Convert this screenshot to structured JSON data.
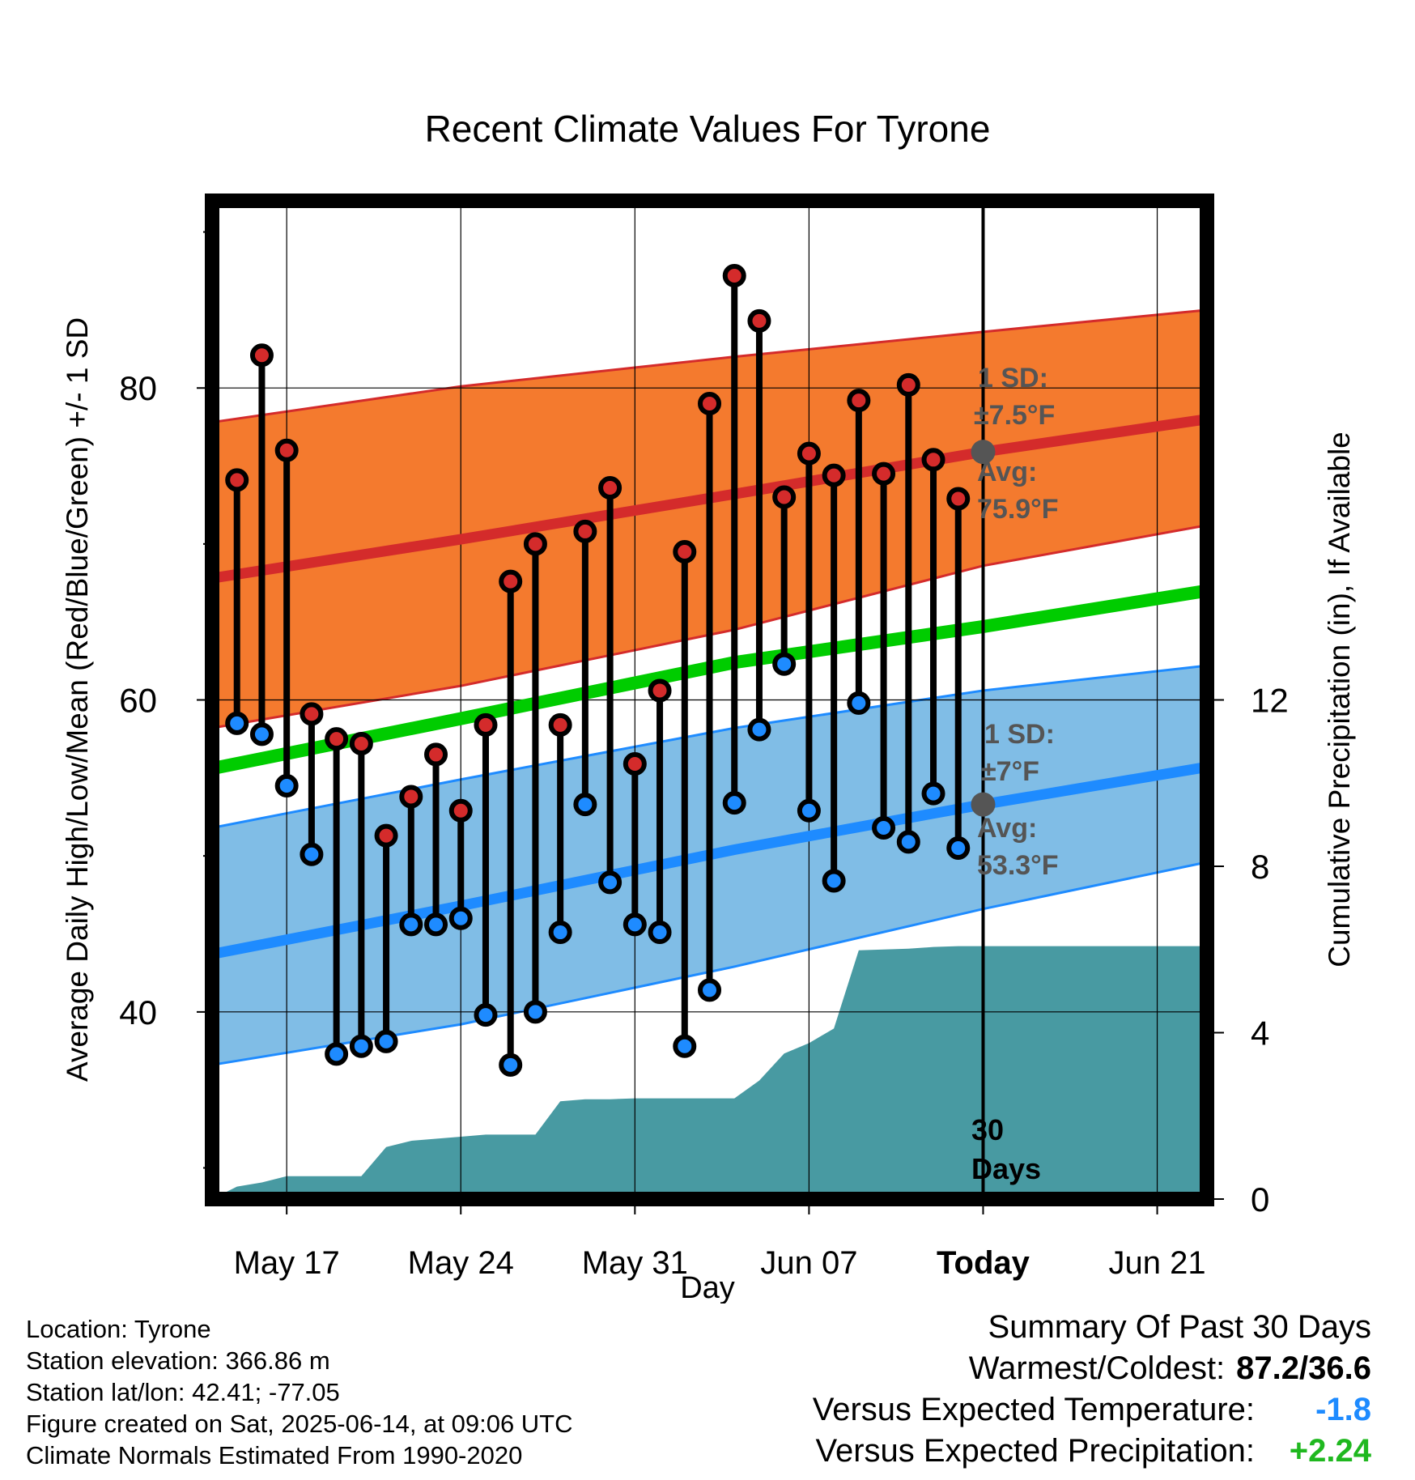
{
  "chart_data": {
    "type": "line",
    "title": "Recent Climate Values For Tyrone",
    "xlabel": "Day",
    "ylabel": "Average Daily High/Low/Mean (Red/Blue/Green) +/- 1 SD",
    "y2label": "Cumulative Precipitation (in), If Available",
    "x_range": [
      "2025-05-14",
      "2025-06-23"
    ],
    "ylim": [
      28,
      92
    ],
    "y2lim": [
      0,
      24
    ],
    "y_ticks": [
      40,
      60,
      80
    ],
    "y2_ticks": [
      0,
      4,
      8,
      12
    ],
    "x_ticks": [
      {
        "date": "2025-05-17",
        "label": "May 17"
      },
      {
        "date": "2025-05-24",
        "label": "May 24"
      },
      {
        "date": "2025-05-31",
        "label": "May 31"
      },
      {
        "date": "2025-06-07",
        "label": "Jun 07"
      },
      {
        "date": "2025-06-14",
        "label": "Today"
      },
      {
        "date": "2025-06-21",
        "label": "Jun 21"
      }
    ],
    "today": "2025-06-14",
    "grid": true,
    "colors": {
      "high_band": "#f47a2e",
      "high_mean_line": "#d42b2b",
      "low_band": "#80bde6",
      "low_mean_line": "#1e8bff",
      "mean_line": "#00cc00",
      "precip": "#489aa2",
      "high_marker": "#d42b2b",
      "low_marker": "#1e8bff"
    },
    "normals": {
      "dates": [
        "2025-05-14",
        "2025-05-24",
        "2025-06-04",
        "2025-06-14",
        "2025-06-23"
      ],
      "high_mean": [
        67.8,
        70.3,
        73.2,
        75.9,
        78.0
      ],
      "high_upper": [
        77.8,
        80.1,
        82.0,
        83.6,
        85.0
      ],
      "high_lower": [
        58.2,
        60.9,
        64.5,
        68.6,
        71.2
      ],
      "low_mean": [
        43.7,
        46.8,
        50.4,
        53.3,
        55.7
      ],
      "low_upper": [
        51.8,
        54.9,
        58.2,
        60.6,
        62.2
      ],
      "low_lower": [
        36.6,
        39.2,
        42.9,
        46.6,
        49.6
      ],
      "mean": [
        55.6,
        58.8,
        62.4,
        64.7,
        67.0
      ]
    },
    "daily": {
      "dates": [
        "2025-05-15",
        "2025-05-16",
        "2025-05-17",
        "2025-05-18",
        "2025-05-19",
        "2025-05-20",
        "2025-05-21",
        "2025-05-22",
        "2025-05-23",
        "2025-05-24",
        "2025-05-25",
        "2025-05-26",
        "2025-05-27",
        "2025-05-28",
        "2025-05-29",
        "2025-05-30",
        "2025-05-31",
        "2025-06-01",
        "2025-06-02",
        "2025-06-03",
        "2025-06-04",
        "2025-06-05",
        "2025-06-06",
        "2025-06-07",
        "2025-06-08",
        "2025-06-09",
        "2025-06-10",
        "2025-06-11",
        "2025-06-12",
        "2025-06-13"
      ],
      "high": [
        74.1,
        82.1,
        76.0,
        59.1,
        57.5,
        57.2,
        51.3,
        53.8,
        56.5,
        52.9,
        58.4,
        67.6,
        70.0,
        58.4,
        70.8,
        73.6,
        55.9,
        60.6,
        69.5,
        79.0,
        87.2,
        84.3,
        73.0,
        75.8,
        74.4,
        79.2,
        74.5,
        80.2,
        75.4,
        72.9
      ],
      "low": [
        58.5,
        57.8,
        54.5,
        50.1,
        37.3,
        37.8,
        38.1,
        45.6,
        45.6,
        46.0,
        39.8,
        36.6,
        40.0,
        45.1,
        53.3,
        48.3,
        45.6,
        45.1,
        37.8,
        41.4,
        53.4,
        58.1,
        62.3,
        52.9,
        48.4,
        59.8,
        51.8,
        50.9,
        54.0,
        50.5
      ]
    },
    "precip_cumulative": {
      "dates": [
        "2025-05-14",
        "2025-05-15",
        "2025-05-16",
        "2025-05-17",
        "2025-05-18",
        "2025-05-19",
        "2025-05-20",
        "2025-05-21",
        "2025-05-22",
        "2025-05-23",
        "2025-05-24",
        "2025-05-25",
        "2025-05-26",
        "2025-05-27",
        "2025-05-28",
        "2025-05-29",
        "2025-05-30",
        "2025-05-31",
        "2025-06-01",
        "2025-06-02",
        "2025-06-03",
        "2025-06-04",
        "2025-06-05",
        "2025-06-06",
        "2025-06-07",
        "2025-06-08",
        "2025-06-09",
        "2025-06-10",
        "2025-06-11",
        "2025-06-12",
        "2025-06-13",
        "2025-06-14",
        "2025-06-23"
      ],
      "values": [
        0.0,
        0.3,
        0.4,
        0.55,
        0.55,
        0.55,
        0.55,
        1.25,
        1.4,
        1.45,
        1.5,
        1.55,
        1.55,
        1.55,
        2.35,
        2.4,
        2.4,
        2.42,
        2.42,
        2.42,
        2.42,
        2.42,
        2.85,
        3.5,
        3.75,
        4.1,
        5.98,
        6.0,
        6.02,
        6.06,
        6.08,
        6.08,
        6.08
      ]
    },
    "annotations": {
      "high_sd_label": "1 SD:",
      "high_sd_value": "±7.5°F",
      "high_avg_label": "Avg:",
      "high_avg_value": "75.9°F",
      "low_sd_label": "1 SD:",
      "low_sd_value": "±7°F",
      "low_avg_label": "Avg:",
      "low_avg_value": "53.3°F",
      "days_line1": "30",
      "days_line2": "Days"
    }
  },
  "footer": {
    "location": "Location: Tyrone",
    "elevation": "Station elevation: 366.86 m",
    "latlon": "Station lat/lon: 42.41; -77.05",
    "created": "Figure created on Sat, 2025-06-14, at 09:06 UTC",
    "normals": "Climate Normals Estimated From 1990-2020"
  },
  "summary": {
    "title": "Summary Of Past 30 Days",
    "warm_cold_label": "Warmest/Coldest:",
    "warm_cold_value": "87.2/36.6",
    "temp_label": "Versus Expected Temperature:",
    "temp_value": "-1.8",
    "temp_color": "#1e8bff",
    "precip_label": "Versus Expected Precipitation:",
    "precip_value": "+2.24",
    "precip_color": "#1fb81f"
  }
}
